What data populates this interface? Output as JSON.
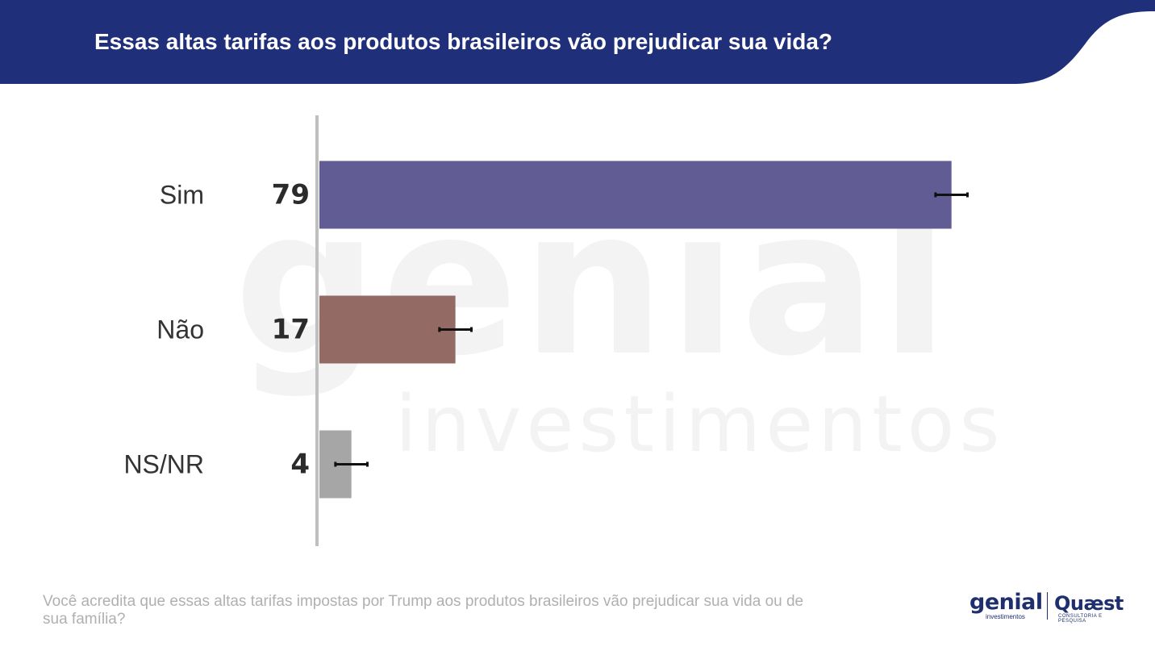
{
  "header": {
    "title": "Essas altas tarifas aos produtos brasileiros vão prejudicar sua vida?",
    "background_color": "#1f2f7a"
  },
  "watermark": {
    "main": "genial",
    "sub": "investimentos"
  },
  "chart_data": {
    "type": "bar",
    "orientation": "horizontal",
    "categories": [
      "Sim",
      "Não",
      "NS/NR"
    ],
    "values": [
      79,
      17,
      4
    ],
    "value_labels": [
      "79",
      "17",
      "4"
    ],
    "colors": [
      "#615c93",
      "#936a64",
      "#a6a6a6"
    ],
    "error_margin": 2,
    "xlim": [
      0,
      100
    ],
    "grid": false,
    "legend": "none"
  },
  "footnote": "Você acredita que essas altas tarifas impostas por Trump aos produtos brasileiros vão prejudicar sua vida ou de sua família?",
  "logos": {
    "genial": "genial",
    "genial_sub": "investimentos",
    "quaest": "Quæst",
    "quaest_sub": "CONSULTORIA E PESQUISA",
    "brand_color": "#1f2f6e"
  }
}
